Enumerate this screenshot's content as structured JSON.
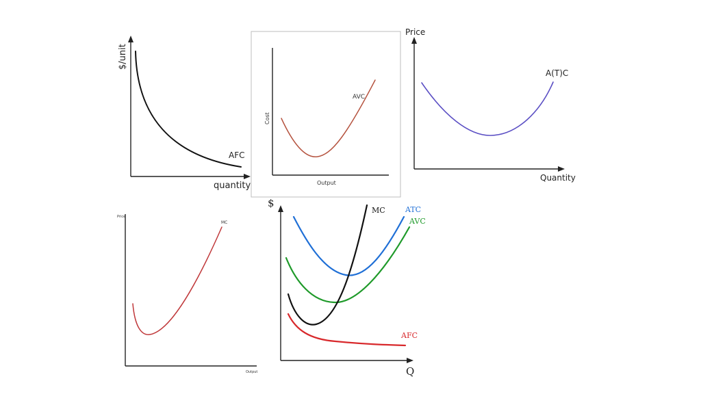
{
  "panel_afc": {
    "y_label": "$/unit",
    "x_label": "quantity",
    "curve_label": "AFC",
    "curve_color": "#111111"
  },
  "panel_avc": {
    "y_label": "Cost",
    "x_label": "Output",
    "curve_label": "AVC",
    "curve_color": "#b5533f"
  },
  "panel_atc": {
    "y_label": "Price",
    "x_label": "Quantity",
    "curve_label": "A(T)C",
    "curve_color": "#5b4fc4"
  },
  "panel_mc": {
    "y_label": "Price",
    "x_label": "Output",
    "curve_label": "MC",
    "curve_color": "#c0393b"
  },
  "panel_combined": {
    "y_label": "$",
    "x_label": "Q",
    "curves": [
      {
        "label": "MC",
        "color": "#111111"
      },
      {
        "label": "ATC",
        "color": "#1f6fd6"
      },
      {
        "label": "AVC",
        "color": "#1f9a2a"
      },
      {
        "label": "AFC",
        "color": "#d8282b"
      }
    ]
  }
}
